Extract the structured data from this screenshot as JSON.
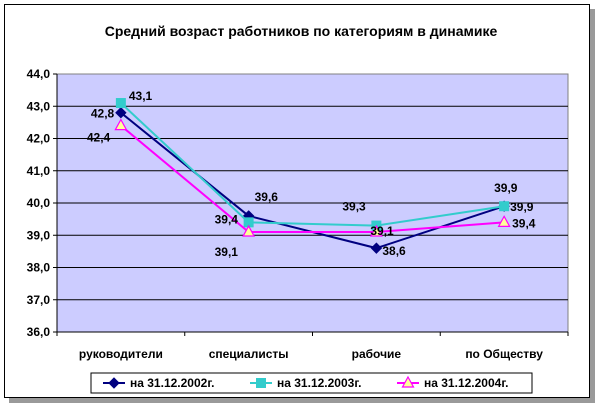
{
  "chart_data": {
    "type": "line",
    "title": "Средний возраст работников по категориям в динамике",
    "xlabel": "",
    "ylabel": "",
    "categories": [
      "руководители",
      "специалисты",
      "рабочие",
      "по Обществу"
    ],
    "ylim": [
      36.0,
      44.0
    ],
    "yticks": [
      "36,0",
      "37,0",
      "38,0",
      "39,0",
      "40,0",
      "41,0",
      "42,0",
      "43,0",
      "44,0"
    ],
    "grid": true,
    "legend_position": "bottom",
    "series": [
      {
        "name": "на 31.12.2002г.",
        "values": [
          42.8,
          39.6,
          38.6,
          39.9
        ],
        "labels": [
          "42,8",
          "39,6",
          "38,6",
          "39,9"
        ],
        "color": "#000080",
        "marker": "diamond"
      },
      {
        "name": "на 31.12.2003г.",
        "values": [
          43.1,
          39.4,
          39.3,
          39.9
        ],
        "labels": [
          "43,1",
          "39,4",
          "39,3",
          "39,9"
        ],
        "color": "#33CCCC",
        "marker": "square"
      },
      {
        "name": "на 31.12.2004г.",
        "values": [
          42.4,
          39.1,
          39.1,
          39.4
        ],
        "labels": [
          "42,4",
          "39,1",
          "39,1",
          "39,4"
        ],
        "color": "#FF00FF",
        "marker": "triangle"
      }
    ],
    "plot_background": "#CCCCFF"
  }
}
